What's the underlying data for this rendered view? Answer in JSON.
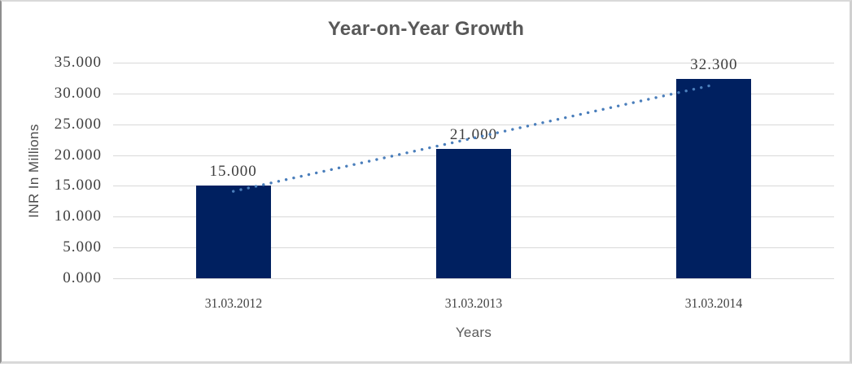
{
  "chart_data": {
    "type": "bar",
    "title": "Year-on-Year Growth",
    "categories": [
      "31.03.2012",
      "31.03.2013",
      "31.03.2014"
    ],
    "values": [
      15.0,
      21.0,
      32.3
    ],
    "data_labels": [
      "15.000",
      "21.000",
      "32.300"
    ],
    "xlabel": "Years",
    "ylabel": "INR In Millions",
    "ylim": [
      0,
      35
    ],
    "ytick_step": 5,
    "ytick_labels": [
      "0.000",
      "5.000",
      "10.000",
      "15.000",
      "20.000",
      "25.000",
      "30.000",
      "35.000"
    ],
    "grid": true,
    "legend": "none",
    "trendline": {
      "type": "linear",
      "style": "dotted"
    },
    "colors": {
      "bar": "#002060",
      "trendline": "#4A7EBB",
      "gridline": "#D9D9D9",
      "title": "#595959",
      "tick_label": "#404040",
      "axis_title": "#595959",
      "background": "#FFFFFF",
      "frame_border": "#D9D9D9"
    }
  }
}
